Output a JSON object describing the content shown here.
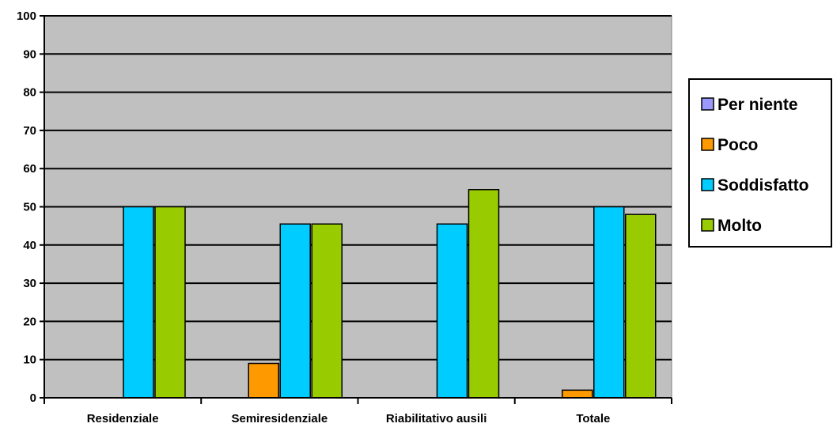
{
  "chart_data": {
    "type": "bar",
    "categories": [
      "Residenziale",
      "Semiresidenziale",
      "Riabilitativo ausili",
      "Totale"
    ],
    "series": [
      {
        "name": "Per niente",
        "values": [
          0,
          0,
          0,
          0
        ],
        "color": "#9999ff"
      },
      {
        "name": "Poco",
        "values": [
          0,
          9,
          0,
          2
        ],
        "color": "#ff9900"
      },
      {
        "name": "Soddisfatto",
        "values": [
          50,
          45.5,
          45.5,
          50
        ],
        "color": "#00ccff"
      },
      {
        "name": "Molto",
        "values": [
          50,
          45.5,
          54.5,
          48
        ],
        "color": "#99cc00"
      }
    ],
    "ylim": [
      0,
      100
    ],
    "yticks": [
      0,
      10,
      20,
      30,
      40,
      50,
      60,
      70,
      80,
      90,
      100
    ],
    "grid": true,
    "plot_background": "#c0c0c0",
    "legend_position": "right"
  }
}
